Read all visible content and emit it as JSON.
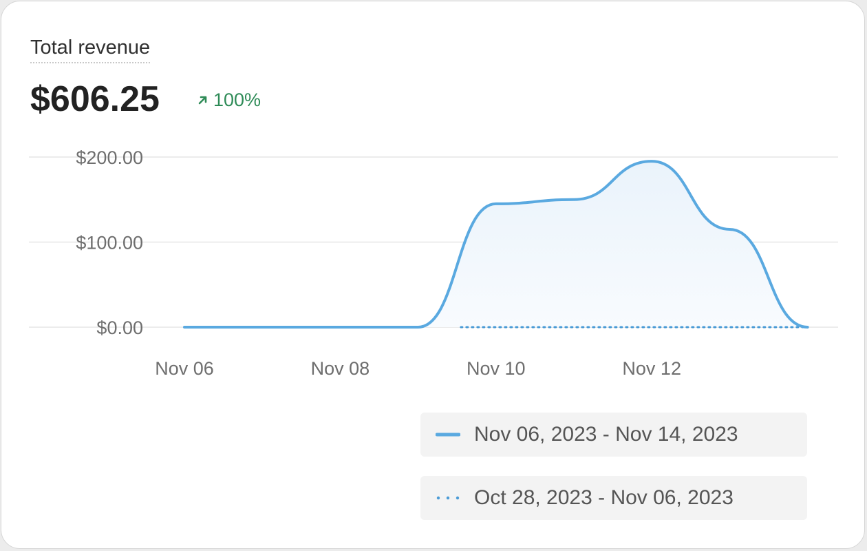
{
  "card": {
    "title": "Total revenue",
    "value": "$606.25",
    "change": "100%",
    "change_icon": "arrow-up-right-icon",
    "change_color": "#2e8b57"
  },
  "chart_data": {
    "type": "area",
    "y_ticks": [
      "$200.00",
      "$100.00",
      "$0.00"
    ],
    "y_tick_values": [
      200,
      100,
      0
    ],
    "ylim": [
      0,
      200
    ],
    "x_ticks": [
      "Nov 06",
      "Nov 08",
      "Nov 10",
      "Nov 12"
    ],
    "x": [
      "Nov 06",
      "Nov 07",
      "Nov 08",
      "Nov 09",
      "Nov 10",
      "Nov 11",
      "Nov 12",
      "Nov 13",
      "Nov 14"
    ],
    "series": [
      {
        "name": "Nov 06, 2023 - Nov 14, 2023",
        "values": [
          0,
          0,
          0,
          0,
          145,
          150,
          195,
          115,
          0
        ],
        "color": "#5aa9e0",
        "style": "solid"
      },
      {
        "name": "Oct 28, 2023 - Nov 06, 2023",
        "values": [
          0,
          0,
          0,
          0,
          0,
          0,
          0,
          0,
          0
        ],
        "color": "#4a9bd6",
        "style": "dotted"
      }
    ],
    "grid": true,
    "legend_placement": "bottom-right"
  },
  "legend": {
    "current_label": "Nov 06, 2023 - Nov 14, 2023",
    "previous_label": "Oct 28, 2023 - Nov 06, 2023"
  }
}
